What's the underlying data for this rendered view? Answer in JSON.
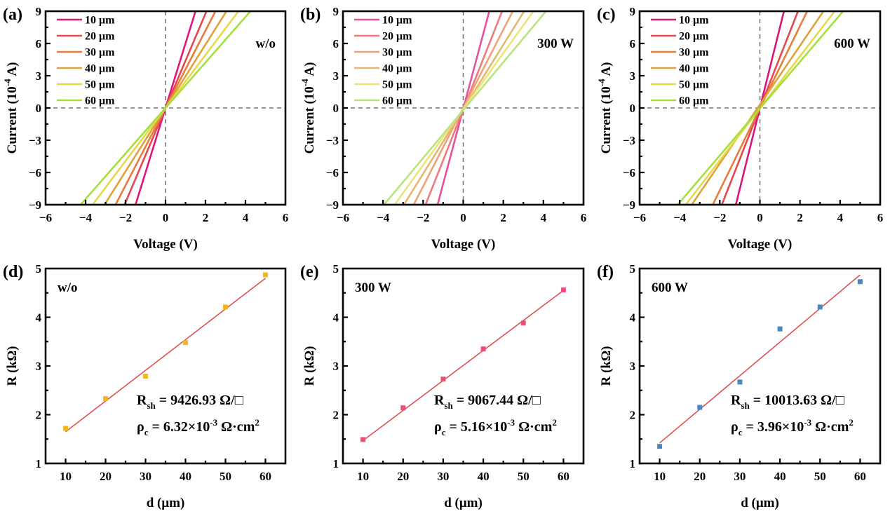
{
  "chart_data": [
    {
      "panel": "(a)",
      "type": "line",
      "annotation": "w/o",
      "xlabel": "Voltage (V)",
      "ylabel": "Current (10^-4 A)",
      "ylabel_parts": {
        "pre": "Current (10",
        "sup": "-4",
        "post": " A)"
      },
      "xlim": [
        -6,
        6
      ],
      "ylim": [
        -9,
        9
      ],
      "xticks": [
        -6,
        -4,
        -2,
        0,
        2,
        4,
        6
      ],
      "yticks": [
        -9,
        -6,
        -3,
        0,
        3,
        6,
        9
      ],
      "xtick_labels": [
        "−6",
        "−4",
        "−2",
        "0",
        "2",
        "4",
        "6"
      ],
      "ytick_labels": [
        "−9",
        "−6",
        "−3",
        "0",
        "3",
        "6",
        "9"
      ],
      "reference_lines": {
        "x0": true,
        "y0": true,
        "style": "dashed"
      },
      "legend_position": "top-left",
      "series": [
        {
          "name": "10 μm",
          "color": "#e0157e",
          "x": [
            -1.5,
            1.5
          ],
          "y": [
            -9,
            9
          ]
        },
        {
          "name": "20 μm",
          "color": "#e5484d",
          "x": [
            -2.05,
            2.05
          ],
          "y": [
            -9,
            9
          ]
        },
        {
          "name": "30 μm",
          "color": "#e87d3a",
          "x": [
            -2.5,
            2.5
          ],
          "y": [
            -9,
            9
          ]
        },
        {
          "name": "40 μm",
          "color": "#dfa23a",
          "x": [
            -3.05,
            3.05
          ],
          "y": [
            -9,
            9
          ]
        },
        {
          "name": "50 μm",
          "color": "#e6d84a",
          "x": [
            -3.65,
            3.65
          ],
          "y": [
            -9,
            9
          ]
        },
        {
          "name": "60 μm",
          "color": "#a5e03a",
          "x": [
            -4.25,
            4.25
          ],
          "y": [
            -9,
            9
          ]
        }
      ]
    },
    {
      "panel": "(b)",
      "type": "line",
      "annotation": "300 W",
      "xlabel": "Voltage (V)",
      "ylabel": "Current (10^-4 A)",
      "ylabel_parts": {
        "pre": "Current (10",
        "sup": "-4",
        "post": " A)"
      },
      "xlim": [
        -6,
        6
      ],
      "ylim": [
        -9,
        9
      ],
      "xticks": [
        -6,
        -4,
        -2,
        0,
        2,
        4,
        6
      ],
      "yticks": [
        -9,
        -6,
        -3,
        0,
        3,
        6,
        9
      ],
      "xtick_labels": [
        "−6",
        "−4",
        "−2",
        "0",
        "2",
        "4",
        "6"
      ],
      "ytick_labels": [
        "−9",
        "−6",
        "−3",
        "0",
        "3",
        "6",
        "9"
      ],
      "reference_lines": {
        "x0": true,
        "y0": true,
        "style": "dashed"
      },
      "legend_position": "top-left",
      "series": [
        {
          "name": "10 μm",
          "color": "#e8509e",
          "x": [
            -1.28,
            1.3
          ],
          "y": [
            -9,
            9
          ]
        },
        {
          "name": "20 μm",
          "color": "#ee7a7a",
          "x": [
            -1.88,
            1.94
          ],
          "y": [
            -9,
            9
          ]
        },
        {
          "name": "30 μm",
          "color": "#f0a276",
          "x": [
            -2.47,
            2.47
          ],
          "y": [
            -9,
            9
          ]
        },
        {
          "name": "40 μm",
          "color": "#e3b870",
          "x": [
            -2.96,
            3.04
          ],
          "y": [
            -9,
            9
          ]
        },
        {
          "name": "50 μm",
          "color": "#ece478",
          "x": [
            -3.42,
            3.5
          ],
          "y": [
            -9,
            9
          ]
        },
        {
          "name": "60 μm",
          "color": "#b9e57a",
          "x": [
            -3.95,
            4.13
          ],
          "y": [
            -9,
            9
          ]
        }
      ]
    },
    {
      "panel": "(c)",
      "type": "line",
      "annotation": "600 W",
      "xlabel": "Voltage (V)",
      "ylabel": "Current (10^-4 A)",
      "ylabel_parts": {
        "pre": "Current (10",
        "sup": "-4",
        "post": " A)"
      },
      "xlim": [
        -6,
        6
      ],
      "ylim": [
        -9,
        9
      ],
      "xticks": [
        -6,
        -4,
        -2,
        0,
        2,
        4,
        6
      ],
      "yticks": [
        -9,
        -6,
        -3,
        0,
        3,
        6,
        9
      ],
      "xtick_labels": [
        "−6",
        "−4",
        "−2",
        "0",
        "2",
        "4",
        "6"
      ],
      "ytick_labels": [
        "−9",
        "−6",
        "−3",
        "0",
        "3",
        "6",
        "9"
      ],
      "reference_lines": {
        "x0": true,
        "y0": true,
        "style": "dashed"
      },
      "legend_position": "top-left",
      "series": [
        {
          "name": "10 μm",
          "color": "#d9157e",
          "x": [
            -1.2,
            1.2
          ],
          "y": [
            -9,
            9
          ]
        },
        {
          "name": "20 μm",
          "color": "#e5484d",
          "x": [
            -1.9,
            1.9
          ],
          "y": [
            -9,
            9
          ]
        },
        {
          "name": "30 μm",
          "color": "#e87d3a",
          "x": [
            -2.35,
            2.36
          ],
          "y": [
            -9,
            9
          ]
        },
        {
          "name": "40 μm",
          "color": "#dfa23a",
          "x": [
            -3.4,
            3.17
          ],
          "y": [
            -9,
            9
          ]
        },
        {
          "name": "50 μm",
          "color": "#e6d84a",
          "x": [
            -3.7,
            3.73
          ],
          "y": [
            -9,
            9
          ]
        },
        {
          "name": "60 μm",
          "color": "#a5e03a",
          "x": [
            -4.1,
            4.15
          ],
          "y": [
            -9,
            9
          ]
        }
      ]
    },
    {
      "panel": "(d)",
      "type": "scatter",
      "annotation": "w/o",
      "xlabel": "d (μm)",
      "ylabel": "R (kΩ)",
      "xlim": [
        5,
        65
      ],
      "ylim": [
        1,
        5
      ],
      "xticks": [
        10,
        20,
        30,
        40,
        50,
        60
      ],
      "yticks": [
        1,
        2,
        3,
        4,
        5
      ],
      "xtick_labels": [
        "10",
        "20",
        "30",
        "40",
        "50",
        "60"
      ],
      "ytick_labels": [
        "1",
        "2",
        "3",
        "4",
        "5"
      ],
      "marker_color": "#f5b81c",
      "fit_color": "#e05050",
      "x": [
        10,
        20,
        30,
        40,
        50,
        60
      ],
      "y": [
        1.72,
        2.33,
        2.79,
        3.48,
        4.21,
        4.87
      ],
      "fit": {
        "x": [
          10,
          60
        ],
        "y": [
          1.65,
          4.8
        ]
      },
      "equations": {
        "rsh": {
          "sym": "R",
          "sub": "sh",
          "text": " = 9426.93 Ω/□"
        },
        "rhoc": {
          "sym": "ρ",
          "sub": "c",
          "pre": " = 6.32×10",
          "sup1": "-3",
          "mid": " Ω·cm",
          "sup2": "2"
        }
      }
    },
    {
      "panel": "(e)",
      "type": "scatter",
      "annotation": "300 W",
      "xlabel": "d (μm)",
      "ylabel": "R (kΩ)",
      "xlim": [
        5,
        65
      ],
      "ylim": [
        1,
        5
      ],
      "xticks": [
        10,
        20,
        30,
        40,
        50,
        60
      ],
      "yticks": [
        1,
        2,
        3,
        4,
        5
      ],
      "xtick_labels": [
        "10",
        "20",
        "30",
        "40",
        "50",
        "60"
      ],
      "ytick_labels": [
        "1",
        "2",
        "3",
        "4",
        "5"
      ],
      "marker_color": "#e8507a",
      "fit_color": "#e05050",
      "x": [
        10,
        20,
        30,
        40,
        50,
        60
      ],
      "y": [
        1.49,
        2.14,
        2.73,
        3.35,
        3.88,
        4.56
      ],
      "fit": {
        "x": [
          10,
          60
        ],
        "y": [
          1.47,
          4.55
        ]
      },
      "equations": {
        "rsh": {
          "sym": "R",
          "sub": "sh",
          "text": " = 9067.44 Ω/□"
        },
        "rhoc": {
          "sym": "ρ",
          "sub": "c",
          "pre": " = 5.16×10",
          "sup1": "-3",
          "mid": " Ω·cm",
          "sup2": "2"
        }
      }
    },
    {
      "panel": "(f)",
      "type": "scatter",
      "annotation": "600 W",
      "xlabel": "d (μm)",
      "ylabel": "R (kΩ)",
      "xlim": [
        5,
        65
      ],
      "ylim": [
        1,
        5
      ],
      "xticks": [
        10,
        20,
        30,
        40,
        50,
        60
      ],
      "yticks": [
        1,
        2,
        3,
        4,
        5
      ],
      "xtick_labels": [
        "10",
        "20",
        "30",
        "40",
        "50",
        "60"
      ],
      "ytick_labels": [
        "1",
        "2",
        "3",
        "4",
        "5"
      ],
      "marker_color": "#4a86c0",
      "fit_color": "#e05050",
      "x": [
        10,
        20,
        30,
        40,
        50,
        60
      ],
      "y": [
        1.35,
        2.15,
        2.67,
        3.76,
        4.21,
        4.73
      ],
      "fit": {
        "x": [
          10,
          60
        ],
        "y": [
          1.42,
          4.87
        ]
      },
      "equations": {
        "rsh": {
          "sym": "R",
          "sub": "sh",
          "text": " = 10013.63 Ω/□"
        },
        "rhoc": {
          "sym": "ρ",
          "sub": "c",
          "pre": " = 3.96×10",
          "sup1": "-3",
          "mid": " Ω·cm",
          "sup2": "2"
        }
      }
    }
  ]
}
